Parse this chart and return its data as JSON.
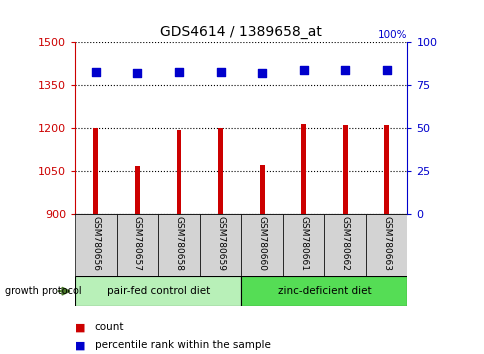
{
  "title": "GDS4614 / 1389658_at",
  "samples": [
    "GSM780656",
    "GSM780657",
    "GSM780658",
    "GSM780659",
    "GSM780660",
    "GSM780661",
    "GSM780662",
    "GSM780663"
  ],
  "counts": [
    1200,
    1070,
    1195,
    1200,
    1072,
    1215,
    1213,
    1210
  ],
  "percentiles": [
    83,
    82,
    83,
    83,
    82,
    84,
    84,
    84
  ],
  "ylim_left": [
    900,
    1500
  ],
  "ylim_right": [
    0,
    100
  ],
  "yticks_left": [
    900,
    1050,
    1200,
    1350,
    1500
  ],
  "yticks_right": [
    0,
    25,
    50,
    75,
    100
  ],
  "bar_color": "#cc0000",
  "dot_color": "#0000cc",
  "bar_width": 0.12,
  "group1_label": "pair-fed control diet",
  "group2_label": "zinc-deficient diet",
  "group1_color": "#b8f0b8",
  "group2_color": "#55dd55",
  "xlabel_area_color": "#d3d3d3",
  "legend_count_color": "#cc0000",
  "legend_percentile_color": "#0000cc",
  "growth_protocol_label": "growth protocol",
  "arrow_color": "#4a7a2a",
  "title_color": "#000000",
  "left_axis_color": "#cc0000",
  "right_axis_color": "#0000cc",
  "percent_label": "100%",
  "gridline_color": "#000000",
  "gridline_style": "dotted",
  "gridline_lw": 0.8
}
